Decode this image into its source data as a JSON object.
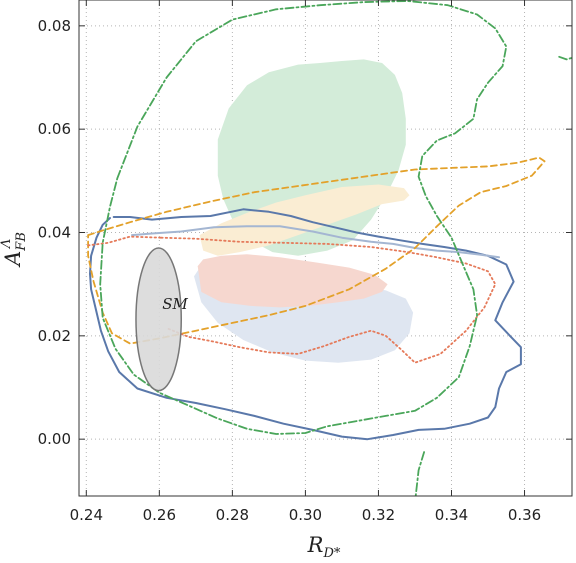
{
  "chart_data": {
    "type": "contour",
    "xlabel": "R",
    "xlabel_sub": "D*",
    "ylabel": "A",
    "ylabel_sub": "FB",
    "ylabel_sup": "Λ",
    "xlim": [
      0.238,
      0.373
    ],
    "ylim": [
      -0.011,
      0.085
    ],
    "grid": true,
    "x_ticks": [
      "0.24",
      "0.26",
      "0.28",
      "0.30",
      "0.32",
      "0.34",
      "0.36"
    ],
    "y_ticks": [
      "0.00",
      "0.02",
      "0.04",
      "0.06",
      "0.08"
    ],
    "annotation": "SM",
    "sm_ellipse": {
      "cx": 0.2598,
      "cy": 0.0232,
      "rx": 0.0062,
      "ry": 0.0138,
      "fill": "#d9d9d9",
      "stroke": "#777777"
    },
    "regions": [
      {
        "kind": "filled",
        "fill": "#d3ecd9",
        "points": [
          [
            0.276,
            0.051
          ],
          [
            0.276,
            0.058
          ],
          [
            0.279,
            0.064
          ],
          [
            0.284,
            0.0685
          ],
          [
            0.29,
            0.071
          ],
          [
            0.298,
            0.0725
          ],
          [
            0.304,
            0.0728
          ],
          [
            0.31,
            0.0732
          ],
          [
            0.316,
            0.0735
          ],
          [
            0.321,
            0.0728
          ],
          [
            0.3245,
            0.0705
          ],
          [
            0.3265,
            0.067
          ],
          [
            0.3275,
            0.062
          ],
          [
            0.3275,
            0.057
          ],
          [
            0.3255,
            0.052
          ],
          [
            0.322,
            0.047
          ],
          [
            0.318,
            0.0425
          ],
          [
            0.313,
            0.0385
          ],
          [
            0.306,
            0.0365
          ],
          [
            0.298,
            0.0355
          ],
          [
            0.291,
            0.0362
          ],
          [
            0.285,
            0.0385
          ],
          [
            0.28,
            0.0425
          ],
          [
            0.2775,
            0.0465
          ]
        ]
      },
      {
        "kind": "filled",
        "fill": "#faedd3",
        "points": [
          [
            0.271,
            0.0395
          ],
          [
            0.272,
            0.0365
          ],
          [
            0.276,
            0.0355
          ],
          [
            0.282,
            0.0362
          ],
          [
            0.29,
            0.0375
          ],
          [
            0.298,
            0.0395
          ],
          [
            0.306,
            0.0415
          ],
          [
            0.314,
            0.0435
          ],
          [
            0.321,
            0.0455
          ],
          [
            0.327,
            0.0462
          ],
          [
            0.3285,
            0.0472
          ],
          [
            0.327,
            0.0486
          ],
          [
            0.32,
            0.0493
          ],
          [
            0.31,
            0.0488
          ],
          [
            0.3,
            0.0472
          ],
          [
            0.292,
            0.0458
          ],
          [
            0.284,
            0.0438
          ],
          [
            0.277,
            0.0418
          ]
        ]
      },
      {
        "kind": "filled",
        "fill": "#dfe6f1",
        "points": [
          [
            0.2695,
            0.0315
          ],
          [
            0.2715,
            0.0265
          ],
          [
            0.276,
            0.0225
          ],
          [
            0.283,
            0.0192
          ],
          [
            0.291,
            0.0168
          ],
          [
            0.3,
            0.0152
          ],
          [
            0.309,
            0.0148
          ],
          [
            0.318,
            0.0154
          ],
          [
            0.3245,
            0.0172
          ],
          [
            0.3285,
            0.0205
          ],
          [
            0.3295,
            0.0245
          ],
          [
            0.3275,
            0.0272
          ],
          [
            0.322,
            0.0288
          ],
          [
            0.314,
            0.0298
          ],
          [
            0.305,
            0.0306
          ],
          [
            0.296,
            0.0316
          ],
          [
            0.286,
            0.0332
          ],
          [
            0.278,
            0.0346
          ],
          [
            0.272,
            0.0342
          ]
        ]
      },
      {
        "kind": "filled",
        "fill": "#f6d7cf",
        "points": [
          [
            0.2705,
            0.0335
          ],
          [
            0.2715,
            0.0285
          ],
          [
            0.277,
            0.0265
          ],
          [
            0.285,
            0.0258
          ],
          [
            0.293,
            0.0255
          ],
          [
            0.301,
            0.0258
          ],
          [
            0.309,
            0.0265
          ],
          [
            0.316,
            0.0272
          ],
          [
            0.321,
            0.0285
          ],
          [
            0.3225,
            0.03
          ],
          [
            0.319,
            0.0318
          ],
          [
            0.312,
            0.0332
          ],
          [
            0.303,
            0.0342
          ],
          [
            0.293,
            0.0352
          ],
          [
            0.284,
            0.0358
          ],
          [
            0.277,
            0.0355
          ],
          [
            0.272,
            0.0348
          ]
        ]
      },
      {
        "kind": "solid",
        "stroke": "#5a78aa",
        "points": [
          [
            0.2475,
            0.043
          ],
          [
            0.252,
            0.043
          ],
          [
            0.258,
            0.0425
          ],
          [
            0.266,
            0.043
          ],
          [
            0.274,
            0.0432
          ],
          [
            0.283,
            0.0445
          ],
          [
            0.29,
            0.044
          ],
          [
            0.296,
            0.0432
          ],
          [
            0.302,
            0.042
          ],
          [
            0.308,
            0.041
          ],
          [
            0.314,
            0.04
          ],
          [
            0.32,
            0.0392
          ],
          [
            0.326,
            0.0385
          ],
          [
            0.332,
            0.0378
          ],
          [
            0.338,
            0.0372
          ],
          [
            0.344,
            0.0365
          ],
          [
            0.35,
            0.0355
          ],
          [
            0.355,
            0.0338
          ],
          [
            0.357,
            0.0305
          ],
          [
            0.354,
            0.0265
          ],
          [
            0.352,
            0.023
          ],
          [
            0.356,
            0.02
          ],
          [
            0.359,
            0.0178
          ],
          [
            0.359,
            0.0145
          ],
          [
            0.355,
            0.013
          ],
          [
            0.353,
            0.0098
          ],
          [
            0.352,
            0.0062
          ],
          [
            0.35,
            0.0042
          ],
          [
            0.345,
            0.003
          ],
          [
            0.338,
            0.002
          ],
          [
            0.331,
            0.0018
          ],
          [
            0.324,
            0.0008
          ],
          [
            0.317,
            0.0
          ],
          [
            0.31,
            0.0005
          ],
          [
            0.302,
            0.0018
          ],
          [
            0.294,
            0.003
          ],
          [
            0.286,
            0.0045
          ],
          [
            0.278,
            0.0058
          ],
          [
            0.27,
            0.007
          ],
          [
            0.262,
            0.008
          ],
          [
            0.254,
            0.0098
          ],
          [
            0.249,
            0.013
          ],
          [
            0.246,
            0.017
          ],
          [
            0.244,
            0.021
          ],
          [
            0.2425,
            0.0255
          ],
          [
            0.2413,
            0.029
          ],
          [
            0.241,
            0.032
          ],
          [
            0.2413,
            0.0355
          ],
          [
            0.2428,
            0.039
          ],
          [
            0.2445,
            0.0415
          ],
          [
            0.2465,
            0.0428
          ]
        ]
      },
      {
        "kind": "solid",
        "stroke": "#a4b6d2",
        "points": [
          [
            0.2525,
            0.0395
          ],
          [
            0.258,
            0.0398
          ],
          [
            0.266,
            0.0402
          ],
          [
            0.275,
            0.041
          ],
          [
            0.284,
            0.0412
          ],
          [
            0.293,
            0.0412
          ],
          [
            0.302,
            0.0402
          ],
          [
            0.31,
            0.039
          ],
          [
            0.318,
            0.0382
          ],
          [
            0.324,
            0.0378
          ],
          [
            0.33,
            0.037
          ],
          [
            0.336,
            0.0365
          ],
          [
            0.342,
            0.0362
          ],
          [
            0.348,
            0.0357
          ],
          [
            0.353,
            0.0352
          ]
        ]
      },
      {
        "kind": "dashed",
        "stroke": "#e3a12a",
        "points": [
          [
            0.2405,
            0.0395
          ],
          [
            0.245,
            0.0405
          ],
          [
            0.252,
            0.042
          ],
          [
            0.262,
            0.044
          ],
          [
            0.274,
            0.046
          ],
          [
            0.286,
            0.0478
          ],
          [
            0.298,
            0.049
          ],
          [
            0.31,
            0.0502
          ],
          [
            0.32,
            0.0512
          ],
          [
            0.33,
            0.0522
          ],
          [
            0.34,
            0.0525
          ],
          [
            0.35,
            0.0528
          ],
          [
            0.358,
            0.0535
          ],
          [
            0.364,
            0.0545
          ],
          [
            0.3655,
            0.0538
          ],
          [
            0.362,
            0.051
          ],
          [
            0.355,
            0.049
          ],
          [
            0.348,
            0.0478
          ],
          [
            0.342,
            0.0452
          ],
          [
            0.336,
            0.0412
          ],
          [
            0.33,
            0.037
          ],
          [
            0.322,
            0.033
          ],
          [
            0.312,
            0.029
          ],
          [
            0.3,
            0.0258
          ],
          [
            0.29,
            0.024
          ],
          [
            0.28,
            0.0225
          ],
          [
            0.27,
            0.021
          ],
          [
            0.26,
            0.0195
          ],
          [
            0.252,
            0.0185
          ],
          [
            0.247,
            0.0205
          ],
          [
            0.2445,
            0.0245
          ],
          [
            0.242,
            0.0305
          ],
          [
            0.2405,
            0.0355
          ],
          [
            0.2405,
            0.0395
          ]
        ]
      },
      {
        "kind": "dotted",
        "stroke": "#e57a5a",
        "points": [
          [
            0.2605,
            0.039
          ],
          [
            0.27,
            0.0388
          ],
          [
            0.282,
            0.0382
          ],
          [
            0.294,
            0.038
          ],
          [
            0.306,
            0.0378
          ],
          [
            0.318,
            0.0372
          ],
          [
            0.328,
            0.0362
          ],
          [
            0.336,
            0.0352
          ],
          [
            0.344,
            0.034
          ],
          [
            0.35,
            0.0325
          ],
          [
            0.352,
            0.03
          ],
          [
            0.349,
            0.0255
          ],
          [
            0.344,
            0.021
          ],
          [
            0.337,
            0.0165
          ],
          [
            0.33,
            0.0148
          ],
          [
            0.326,
            0.0175
          ],
          [
            0.322,
            0.02
          ],
          [
            0.318,
            0.021
          ],
          [
            0.312,
            0.0198
          ],
          [
            0.305,
            0.018
          ],
          [
            0.298,
            0.0165
          ],
          [
            0.29,
            0.0168
          ],
          [
            0.282,
            0.0178
          ],
          [
            0.274,
            0.019
          ],
          [
            0.268,
            0.0198
          ],
          [
            0.262,
            0.0215
          ]
        ]
      },
      {
        "kind": "dotted",
        "stroke": "#e57a5a",
        "points": [
          [
            0.2405,
            0.0375
          ],
          [
            0.246,
            0.038
          ],
          [
            0.252,
            0.0392
          ],
          [
            0.2605,
            0.039
          ]
        ]
      },
      {
        "kind": "dashdot",
        "stroke": "#4aa65a",
        "points": [
          [
            0.2485,
            0.0505
          ],
          [
            0.254,
            0.0605
          ],
          [
            0.262,
            0.07
          ],
          [
            0.27,
            0.077
          ],
          [
            0.28,
            0.0812
          ],
          [
            0.292,
            0.0832
          ],
          [
            0.304,
            0.084
          ],
          [
            0.316,
            0.0846
          ],
          [
            0.328,
            0.0848
          ],
          [
            0.339,
            0.084
          ],
          [
            0.347,
            0.0822
          ],
          [
            0.352,
            0.0795
          ],
          [
            0.355,
            0.076
          ],
          [
            0.354,
            0.0722
          ],
          [
            0.35,
            0.069
          ],
          [
            0.347,
            0.0658
          ],
          [
            0.346,
            0.062
          ],
          [
            0.341,
            0.0592
          ],
          [
            0.336,
            0.0578
          ],
          [
            0.332,
            0.0548
          ],
          [
            0.331,
            0.0508
          ],
          [
            0.333,
            0.047
          ],
          [
            0.336,
            0.0432
          ],
          [
            0.34,
            0.039
          ],
          [
            0.343,
            0.034
          ],
          [
            0.346,
            0.029
          ],
          [
            0.347,
            0.024
          ],
          [
            0.345,
            0.018
          ],
          [
            0.342,
            0.012
          ],
          [
            0.336,
            0.008
          ],
          [
            0.33,
            0.0055
          ],
          [
            0.322,
            0.0045
          ],
          [
            0.314,
            0.0035
          ],
          [
            0.306,
            0.0025
          ],
          [
            0.3,
            0.0012
          ],
          [
            0.292,
            0.001
          ],
          [
            0.284,
            0.002
          ],
          [
            0.276,
            0.004
          ],
          [
            0.268,
            0.0065
          ],
          [
            0.26,
            0.009
          ],
          [
            0.253,
            0.0125
          ],
          [
            0.248,
            0.0175
          ],
          [
            0.2445,
            0.0235
          ],
          [
            0.2438,
            0.03
          ],
          [
            0.2445,
            0.038
          ],
          [
            0.2465,
            0.045
          ],
          [
            0.2485,
            0.0505
          ]
        ]
      },
      {
        "kind": "dashdot",
        "stroke": "#4aa65a",
        "points": [
          [
            0.3325,
            -0.0025
          ],
          [
            0.331,
            -0.006
          ],
          [
            0.3302,
            -0.011
          ]
        ]
      },
      {
        "kind": "dashdot",
        "stroke": "#4aa65a",
        "points": [
          [
            0.3695,
            0.074
          ],
          [
            0.3715,
            0.0735
          ],
          [
            0.373,
            0.0738
          ]
        ]
      }
    ]
  }
}
